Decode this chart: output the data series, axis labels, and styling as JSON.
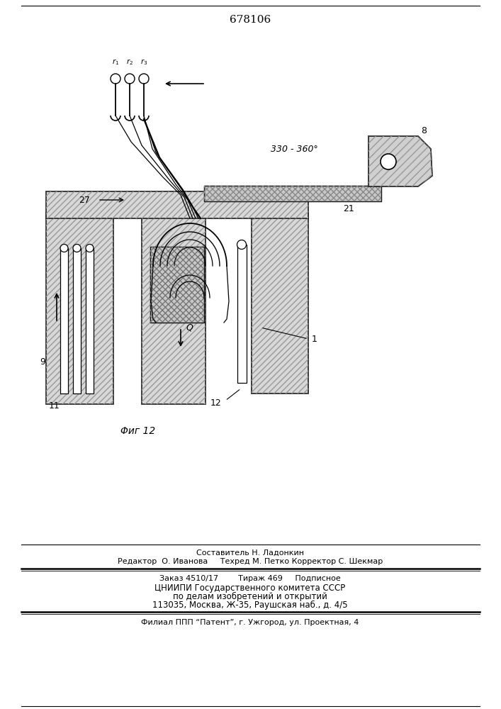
{
  "patent_number": "678106",
  "figure_label": "Φиг 12",
  "angle_label": "330 - 360°",
  "labels": {
    "r1": "r₁",
    "r2": "r₂",
    "r3": "r₃",
    "num_1": "1",
    "num_8": "8",
    "num_9": "9",
    "num_11": "11",
    "num_12": "12",
    "num_21": "21",
    "num_27": "27",
    "q_label": "Q"
  },
  "footer": {
    "line1": "Составитель Н. Ладонкин",
    "line2": "Редактор  О. Иванова     Техред М. Петко Корректор С. Шекмар",
    "line3": "Заказ 4510/17        Тираж 469     Подписное",
    "line4": "ЦНИИПИ Государственного комитета СССР",
    "line5": "по делам изобретений и открытий",
    "line6": "113035, Москва, Ж-35, Раушская наб., д. 4/5",
    "line7": "Филиал ППП “Патент”, г. Ужгород, ул. Проектная, 4"
  },
  "bg_color": "#ffffff",
  "line_color": "#000000"
}
